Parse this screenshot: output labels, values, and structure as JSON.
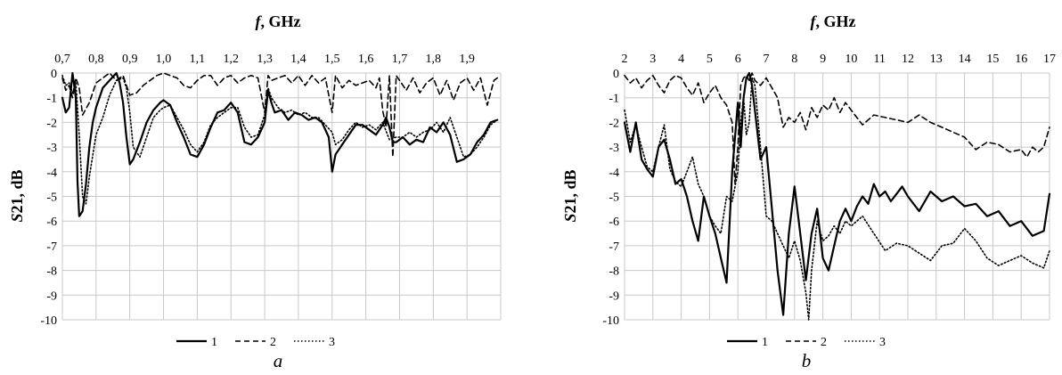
{
  "chart_data": [
    {
      "type": "line",
      "panel_label": "a",
      "xlabel_italic": "f",
      "xlabel_rest": ", GHz",
      "ylabel_italic": "S",
      "ylabel_rest": "21, dB",
      "xlim": [
        0.7,
        2.0
      ],
      "ylim": [
        -10,
        0
      ],
      "x_ticks": [
        "0,7",
        "0,8",
        "0,9",
        "1,0",
        "1,1",
        "1,2",
        "1,3",
        "1,4",
        "1,5",
        "1,6",
        "1,7",
        "1,8",
        "1,9"
      ],
      "x_tick_values": [
        0.7,
        0.8,
        0.9,
        1.0,
        1.1,
        1.2,
        1.3,
        1.4,
        1.5,
        1.6,
        1.7,
        1.8,
        1.9
      ],
      "y_ticks": [
        "0",
        "-1",
        "-2",
        "-3",
        "-4",
        "-5",
        "-6",
        "-7",
        "-8",
        "-9",
        "-10"
      ],
      "grid": true,
      "legend_position": "bottom",
      "series": [
        {
          "name": "1",
          "style": "solid",
          "x": [
            0.7,
            0.71,
            0.72,
            0.73,
            0.74,
            0.745,
            0.75,
            0.76,
            0.77,
            0.78,
            0.79,
            0.8,
            0.82,
            0.84,
            0.86,
            0.87,
            0.88,
            0.89,
            0.9,
            0.91,
            0.93,
            0.95,
            0.97,
            0.99,
            1.0,
            1.02,
            1.04,
            1.06,
            1.08,
            1.1,
            1.12,
            1.14,
            1.16,
            1.18,
            1.2,
            1.22,
            1.24,
            1.26,
            1.28,
            1.3,
            1.31,
            1.32,
            1.33,
            1.35,
            1.37,
            1.39,
            1.41,
            1.43,
            1.45,
            1.47,
            1.49,
            1.5,
            1.51,
            1.53,
            1.55,
            1.57,
            1.59,
            1.61,
            1.63,
            1.65,
            1.66,
            1.67,
            1.68,
            1.69,
            1.71,
            1.73,
            1.75,
            1.77,
            1.79,
            1.81,
            1.83,
            1.85,
            1.87,
            1.89,
            1.91,
            1.93,
            1.95,
            1.97,
            1.99
          ],
          "values": [
            -1.0,
            -1.6,
            -1.4,
            0,
            -1.0,
            -4.4,
            -5.8,
            -5.6,
            -4.5,
            -3.0,
            -2.0,
            -1.4,
            -0.6,
            -0.3,
            0,
            -0.4,
            -1.2,
            -2.6,
            -3.7,
            -3.5,
            -2.8,
            -2.0,
            -1.5,
            -1.2,
            -1.1,
            -1.3,
            -2.0,
            -2.6,
            -3.3,
            -3.4,
            -2.9,
            -2.2,
            -1.6,
            -1.5,
            -1.2,
            -1.6,
            -2.8,
            -2.9,
            -2.6,
            -2.0,
            -0.7,
            -1.2,
            -1.6,
            -1.5,
            -1.9,
            -1.6,
            -1.7,
            -1.9,
            -1.8,
            -2.0,
            -2.6,
            -4.0,
            -3.3,
            -2.9,
            -2.5,
            -2.1,
            -2.1,
            -2.3,
            -2.5,
            -2.1,
            -1.8,
            -2.2,
            -2.8,
            -2.8,
            -2.6,
            -2.9,
            -2.7,
            -2.8,
            -2.2,
            -2.4,
            -2.0,
            -2.5,
            -3.6,
            -3.5,
            -3.3,
            -2.8,
            -2.5,
            -2.0,
            -1.9
          ]
        },
        {
          "name": "2",
          "style": "dashed",
          "x": [
            0.7,
            0.71,
            0.72,
            0.73,
            0.74,
            0.75,
            0.76,
            0.78,
            0.8,
            0.82,
            0.84,
            0.86,
            0.88,
            0.89,
            0.9,
            0.92,
            0.94,
            0.96,
            0.98,
            1.0,
            1.02,
            1.04,
            1.06,
            1.08,
            1.1,
            1.12,
            1.14,
            1.16,
            1.18,
            1.2,
            1.22,
            1.24,
            1.26,
            1.28,
            1.3,
            1.31,
            1.32,
            1.34,
            1.36,
            1.38,
            1.4,
            1.42,
            1.44,
            1.46,
            1.48,
            1.5,
            1.51,
            1.53,
            1.55,
            1.57,
            1.59,
            1.61,
            1.63,
            1.64,
            1.65,
            1.66,
            1.67,
            1.68,
            1.69,
            1.7,
            1.72,
            1.74,
            1.76,
            1.78,
            1.8,
            1.82,
            1.84,
            1.86,
            1.88,
            1.9,
            1.92,
            1.94,
            1.96,
            1.98,
            1.99
          ],
          "values": [
            -0.2,
            -0.7,
            -0.5,
            -1.0,
            -0.2,
            -0.6,
            -1.7,
            -1.2,
            -0.4,
            -0.2,
            0,
            -0.3,
            -0.1,
            -0.5,
            -0.9,
            -0.8,
            -0.5,
            -0.3,
            -0.1,
            0,
            -0.1,
            -0.2,
            -0.5,
            -0.6,
            -0.3,
            -0.1,
            -0.1,
            -0.5,
            -0.2,
            -0.1,
            -0.4,
            -0.2,
            -0.1,
            -0.2,
            -1.6,
            -0.1,
            -0.3,
            -0.2,
            -0.1,
            -0.4,
            -0.1,
            -0.5,
            -0.1,
            -0.4,
            -0.2,
            -1.6,
            -0.1,
            -0.6,
            -0.3,
            -0.5,
            -0.4,
            -0.3,
            -0.6,
            -0.2,
            -1.5,
            -2.2,
            -0.1,
            -3.4,
            -0.1,
            -0.3,
            -0.7,
            -0.2,
            -0.8,
            -0.4,
            -0.2,
            -0.9,
            -0.3,
            -1.1,
            -0.4,
            -0.2,
            -0.7,
            -0.2,
            -1.3,
            -0.3,
            -0.2
          ]
        },
        {
          "name": "3",
          "style": "dotted",
          "x": [
            0.7,
            0.71,
            0.72,
            0.73,
            0.74,
            0.75,
            0.76,
            0.77,
            0.78,
            0.8,
            0.82,
            0.84,
            0.86,
            0.88,
            0.89,
            0.9,
            0.91,
            0.93,
            0.95,
            0.97,
            0.99,
            1.0,
            1.02,
            1.04,
            1.06,
            1.08,
            1.1,
            1.12,
            1.14,
            1.16,
            1.18,
            1.2,
            1.22,
            1.24,
            1.26,
            1.28,
            1.3,
            1.31,
            1.32,
            1.34,
            1.36,
            1.38,
            1.4,
            1.42,
            1.44,
            1.46,
            1.48,
            1.5,
            1.51,
            1.53,
            1.55,
            1.57,
            1.59,
            1.61,
            1.63,
            1.65,
            1.67,
            1.69,
            1.71,
            1.73,
            1.75,
            1.77,
            1.79,
            1.81,
            1.83,
            1.85,
            1.87,
            1.89,
            1.91,
            1.93,
            1.95,
            1.97,
            1.99
          ],
          "values": [
            -0.1,
            -0.5,
            -0.4,
            -0.8,
            -0.4,
            -2.5,
            -5.0,
            -5.3,
            -4.2,
            -2.5,
            -1.8,
            -0.9,
            -0.3,
            -0.2,
            -0.6,
            -1.6,
            -3.0,
            -3.4,
            -2.6,
            -1.8,
            -1.5,
            -1.4,
            -1.3,
            -1.8,
            -2.3,
            -2.9,
            -3.2,
            -2.8,
            -2.1,
            -1.8,
            -1.6,
            -1.4,
            -1.4,
            -2.2,
            -2.6,
            -2.5,
            -1.7,
            -0.6,
            -1.0,
            -1.4,
            -1.6,
            -1.5,
            -1.7,
            -1.6,
            -1.8,
            -1.8,
            -2.1,
            -2.4,
            -2.9,
            -2.7,
            -2.3,
            -2.0,
            -2.2,
            -2.1,
            -2.3,
            -2.0,
            -2.7,
            -2.6,
            -2.6,
            -2.4,
            -2.6,
            -2.4,
            -2.3,
            -2.0,
            -2.4,
            -1.8,
            -2.6,
            -3.4,
            -3.3,
            -3.0,
            -2.6,
            -2.1,
            -1.9
          ]
        }
      ]
    },
    {
      "type": "line",
      "panel_label": "b",
      "xlabel_italic": "f",
      "xlabel_rest": ", GHz",
      "ylabel_italic": "S",
      "ylabel_rest": "21, dB",
      "xlim": [
        2,
        17
      ],
      "ylim": [
        -10,
        0
      ],
      "x_ticks": [
        "2",
        "3",
        "4",
        "5",
        "6",
        "7",
        "8",
        "9",
        "10",
        "11",
        "12",
        "13",
        "14",
        "15",
        "16",
        "17"
      ],
      "x_tick_values": [
        2,
        3,
        4,
        5,
        6,
        7,
        8,
        9,
        10,
        11,
        12,
        13,
        14,
        15,
        16,
        17
      ],
      "y_ticks": [
        "0",
        "-1",
        "-2",
        "-3",
        "-4",
        "-5",
        "-6",
        "-7",
        "-8",
        "-9",
        "-10"
      ],
      "grid": true,
      "legend_position": "bottom",
      "series": [
        {
          "name": "1",
          "style": "solid",
          "x": [
            2.0,
            2.2,
            2.4,
            2.6,
            2.8,
            3.0,
            3.2,
            3.4,
            3.6,
            3.8,
            4.0,
            4.2,
            4.4,
            4.6,
            4.8,
            5.0,
            5.2,
            5.4,
            5.6,
            5.8,
            6.0,
            6.1,
            6.2,
            6.3,
            6.4,
            6.5,
            6.6,
            6.8,
            7.0,
            7.2,
            7.4,
            7.6,
            7.8,
            8.0,
            8.2,
            8.4,
            8.6,
            8.8,
            9.0,
            9.2,
            9.4,
            9.6,
            9.8,
            10.0,
            10.2,
            10.4,
            10.6,
            10.8,
            11.0,
            11.2,
            11.4,
            11.6,
            11.8,
            12.0,
            12.4,
            12.8,
            13.2,
            13.6,
            14.0,
            14.4,
            14.8,
            15.2,
            15.6,
            16.0,
            16.4,
            16.8,
            17.0
          ],
          "values": [
            -2.0,
            -3.2,
            -2.0,
            -3.5,
            -3.9,
            -4.2,
            -3.0,
            -2.7,
            -3.5,
            -4.5,
            -4.3,
            -5.0,
            -6.0,
            -6.8,
            -5.0,
            -5.8,
            -6.5,
            -7.5,
            -8.5,
            -4.0,
            -1.2,
            -3.0,
            -1.0,
            -0.2,
            0,
            -0.5,
            -1.5,
            -3.5,
            -3.0,
            -5.5,
            -8.0,
            -9.8,
            -6.5,
            -4.6,
            -6.5,
            -8.4,
            -6.5,
            -5.5,
            -7.5,
            -8.0,
            -7.0,
            -6.0,
            -5.5,
            -6.0,
            -5.4,
            -5.0,
            -5.3,
            -4.5,
            -5.0,
            -4.8,
            -5.2,
            -4.9,
            -4.6,
            -5.0,
            -5.6,
            -4.8,
            -5.2,
            -5.0,
            -5.4,
            -5.3,
            -5.8,
            -5.6,
            -6.2,
            -6.0,
            -6.6,
            -6.4,
            -4.9
          ]
        },
        {
          "name": "2",
          "style": "dashed",
          "x": [
            2.0,
            2.2,
            2.4,
            2.6,
            2.8,
            3.0,
            3.2,
            3.4,
            3.6,
            3.8,
            4.0,
            4.2,
            4.4,
            4.6,
            4.8,
            5.0,
            5.2,
            5.4,
            5.6,
            5.8,
            5.9,
            6.0,
            6.1,
            6.2,
            6.3,
            6.4,
            6.5,
            6.6,
            6.8,
            7.0,
            7.2,
            7.4,
            7.6,
            7.8,
            8.0,
            8.2,
            8.4,
            8.6,
            8.8,
            9.0,
            9.2,
            9.4,
            9.6,
            9.8,
            10.0,
            10.4,
            10.8,
            11.2,
            11.6,
            12.0,
            12.4,
            12.8,
            13.2,
            13.6,
            14.0,
            14.4,
            14.8,
            15.2,
            15.6,
            16.0,
            16.2,
            16.4,
            16.6,
            16.8,
            17.0
          ],
          "values": [
            -0.1,
            -0.4,
            -0.2,
            -0.6,
            -0.3,
            -0.1,
            -0.5,
            -0.8,
            -0.3,
            -0.1,
            -0.2,
            -0.6,
            -0.9,
            -0.4,
            -1.2,
            -0.8,
            -0.5,
            -1.0,
            -1.3,
            -2.0,
            -4.5,
            -3.0,
            -0.5,
            -0.2,
            -0.1,
            -0.3,
            0,
            -0.3,
            -0.5,
            -0.2,
            -0.6,
            -1.0,
            -2.2,
            -1.8,
            -2.0,
            -1.6,
            -2.3,
            -1.4,
            -1.8,
            -1.3,
            -1.5,
            -1.0,
            -1.6,
            -1.2,
            -1.5,
            -2.1,
            -1.7,
            -1.8,
            -1.9,
            -2.0,
            -1.7,
            -2.0,
            -2.2,
            -2.4,
            -2.6,
            -3.1,
            -2.8,
            -2.9,
            -3.2,
            -3.1,
            -3.4,
            -3.0,
            -3.2,
            -3.0,
            -2.2
          ]
        },
        {
          "name": "3",
          "style": "dotted",
          "x": [
            2.0,
            2.2,
            2.4,
            2.6,
            2.8,
            3.0,
            3.2,
            3.4,
            3.6,
            3.8,
            4.0,
            4.2,
            4.4,
            4.6,
            4.8,
            5.0,
            5.2,
            5.4,
            5.6,
            5.8,
            6.0,
            6.1,
            6.2,
            6.3,
            6.4,
            6.5,
            6.6,
            6.8,
            7.0,
            7.2,
            7.4,
            7.6,
            7.8,
            8.0,
            8.2,
            8.4,
            8.5,
            8.6,
            8.8,
            9.0,
            9.2,
            9.4,
            9.6,
            9.8,
            10.0,
            10.4,
            10.8,
            11.2,
            11.6,
            12.0,
            12.4,
            12.8,
            13.2,
            13.6,
            14.0,
            14.4,
            14.8,
            15.2,
            15.6,
            16.0,
            16.4,
            16.8,
            17.0
          ],
          "values": [
            -1.5,
            -2.8,
            -2.1,
            -3.0,
            -3.8,
            -4.0,
            -3.0,
            -2.1,
            -3.9,
            -4.4,
            -4.6,
            -4.0,
            -3.4,
            -4.5,
            -5.0,
            -5.8,
            -6.2,
            -6.5,
            -5.0,
            -5.2,
            -4.0,
            -2.0,
            -1.0,
            -2.5,
            -2.0,
            -0.2,
            -0.5,
            -3.0,
            -5.8,
            -6.0,
            -6.5,
            -7.0,
            -7.5,
            -6.8,
            -7.6,
            -8.9,
            -10.0,
            -8.0,
            -6.0,
            -6.8,
            -6.6,
            -6.2,
            -6.5,
            -6.0,
            -6.2,
            -5.8,
            -6.5,
            -7.2,
            -6.9,
            -7.0,
            -7.3,
            -7.6,
            -7.0,
            -6.9,
            -6.3,
            -6.8,
            -7.5,
            -7.8,
            -7.6,
            -7.4,
            -7.7,
            -7.9,
            -7.2
          ]
        }
      ]
    }
  ]
}
